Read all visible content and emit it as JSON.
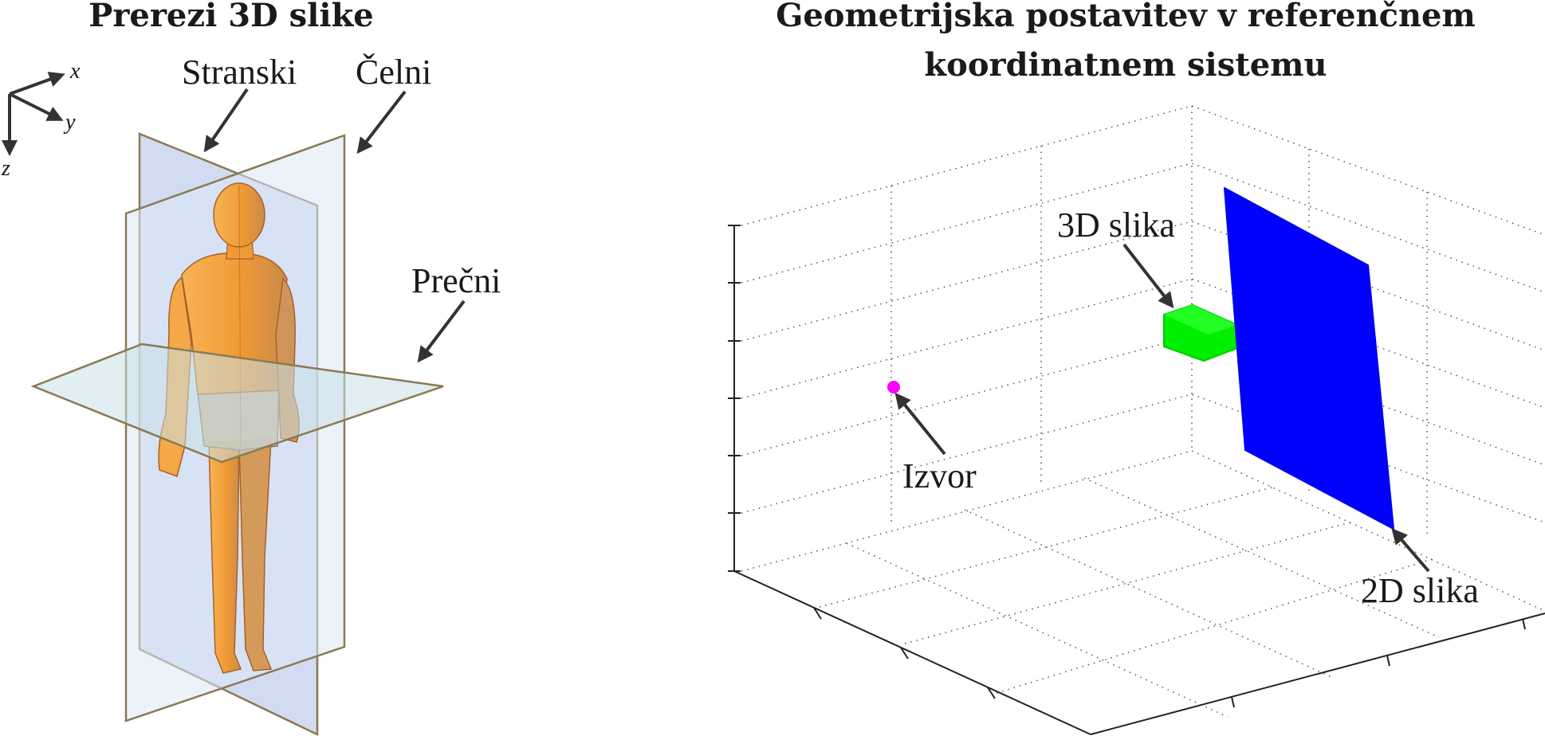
{
  "left_panel": {
    "title": "Prerezi 3D slike",
    "axes": {
      "x": "x",
      "y": "y",
      "z": "z"
    },
    "planes": {
      "sagittal": "Stranski",
      "coronal": "Čelni",
      "transverse": "Prečni"
    }
  },
  "right_panel": {
    "title_line1": "Geometrijska postavitev v referenčnem",
    "title_line2": "koordinatnem sistemu",
    "labels": {
      "volume": "3D slika",
      "source": "Izvor",
      "detector": "2D slika"
    },
    "colors": {
      "source": "#ff00ff",
      "volume": "#00ee00",
      "detector": "#0000ff"
    }
  },
  "colors": {
    "arrow": "#333333",
    "plane_blue": "#c6d4ee",
    "plane_edge": "#8a7a52",
    "body": "#f2a246"
  }
}
